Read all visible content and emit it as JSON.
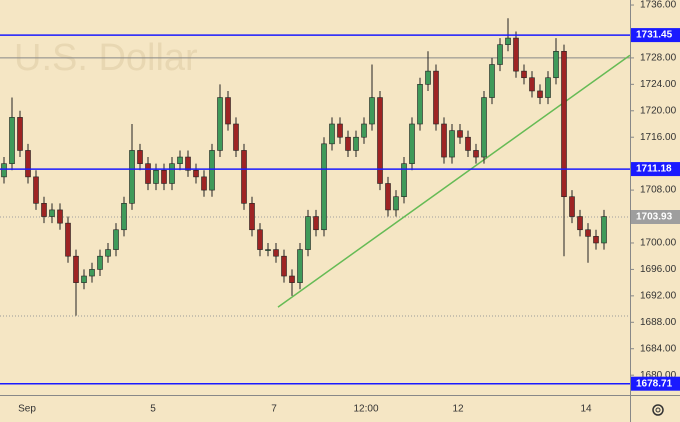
{
  "chart_data": {
    "type": "candlestick",
    "watermark": "U.S. Dollar",
    "ylim": [
      1677.0,
      1736.76
    ],
    "yticks": [
      {
        "value": 1736,
        "label": "1736.00"
      },
      {
        "value": 1728,
        "label": "1728.00"
      },
      {
        "value": 1724,
        "label": "1724.00"
      },
      {
        "value": 1720,
        "label": "1720.00"
      },
      {
        "value": 1716,
        "label": "1716.00"
      },
      {
        "value": 1708,
        "label": "1708.00"
      },
      {
        "value": 1700,
        "label": "1700.00"
      },
      {
        "value": 1696,
        "label": "1696.00"
      },
      {
        "value": 1692,
        "label": "1692.00"
      },
      {
        "value": 1688,
        "label": "1688.00"
      },
      {
        "value": 1684,
        "label": "1684.00"
      },
      {
        "value": 1680,
        "label": "1680.00"
      }
    ],
    "x_labels": [
      "Sep",
      "5",
      "7",
      "12:00",
      "12",
      "14"
    ],
    "up_color": "#3f9a5a",
    "down_color": "#9e2424",
    "open": [
      1710,
      1712,
      1719,
      1714,
      1710,
      1706,
      1704,
      1705,
      1703,
      1698,
      1694,
      1695,
      1696,
      1698,
      1699,
      1702,
      1706,
      1714,
      1712,
      1709,
      1711,
      1709,
      1712,
      1713,
      1711,
      1710,
      1708,
      1714,
      1722,
      1718,
      1714,
      1706,
      1702,
      1699,
      1699,
      1698,
      1695,
      1694,
      1699,
      1704,
      1702,
      1715,
      1718,
      1716,
      1714,
      1716,
      1718,
      1722,
      1709,
      1705,
      1707,
      1712,
      1718,
      1724,
      1726,
      1718,
      1713,
      1717,
      1716,
      1714,
      1713,
      1722,
      1727,
      1730,
      1731,
      1726,
      1725,
      1723,
      1722,
      1725,
      1729,
      1707,
      1704,
      1702,
      1701,
      1700
    ],
    "high": [
      1713,
      1722,
      1720,
      1715,
      1711,
      1707,
      1706,
      1706,
      1704,
      1699,
      1696,
      1697,
      1699,
      1700,
      1703,
      1707,
      1718,
      1715,
      1713,
      1712,
      1712,
      1713,
      1714,
      1714,
      1712,
      1711,
      1715,
      1724,
      1723,
      1719,
      1715,
      1707,
      1703,
      1700,
      1700,
      1699,
      1696,
      1700,
      1705,
      1705,
      1716,
      1719,
      1719,
      1717,
      1717,
      1719,
      1727,
      1723,
      1710,
      1708,
      1713,
      1719,
      1725,
      1729,
      1727,
      1719,
      1718,
      1718,
      1717,
      1715,
      1723,
      1728,
      1731,
      1734,
      1732,
      1727,
      1726,
      1724,
      1726,
      1731,
      1730,
      1708,
      1705,
      1703,
      1702,
      1705
    ],
    "low": [
      1709,
      1711,
      1713,
      1709,
      1705,
      1703,
      1703,
      1702,
      1697,
      1689,
      1693,
      1694,
      1695,
      1697,
      1698,
      1701,
      1705,
      1711,
      1708,
      1708,
      1708,
      1708,
      1711,
      1710,
      1709,
      1707,
      1707,
      1713,
      1717,
      1713,
      1705,
      1701,
      1698,
      1698,
      1697,
      1694,
      1692,
      1693,
      1698,
      1701,
      1701,
      1714,
      1715,
      1713,
      1713,
      1715,
      1717,
      1708,
      1704,
      1704,
      1706,
      1711,
      1717,
      1723,
      1717,
      1712,
      1712,
      1715,
      1713,
      1712,
      1712,
      1721,
      1726,
      1729,
      1725,
      1724,
      1722,
      1721,
      1721,
      1724,
      1698,
      1703,
      1701,
      1697,
      1699,
      1699
    ],
    "close": [
      1712,
      1719,
      1714,
      1710,
      1706,
      1704,
      1705,
      1703,
      1698,
      1694,
      1695,
      1696,
      1698,
      1699,
      1702,
      1706,
      1714,
      1712,
      1709,
      1711,
      1709,
      1712,
      1713,
      1711,
      1710,
      1708,
      1714,
      1722,
      1718,
      1714,
      1706,
      1702,
      1699,
      1699,
      1698,
      1695,
      1694,
      1699,
      1704,
      1702,
      1715,
      1718,
      1716,
      1714,
      1716,
      1718,
      1722,
      1709,
      1705,
      1707,
      1712,
      1718,
      1724,
      1726,
      1718,
      1713,
      1717,
      1716,
      1714,
      1713,
      1722,
      1727,
      1730,
      1731,
      1726,
      1725,
      1723,
      1722,
      1725,
      1729,
      1707,
      1704,
      1702,
      1701,
      1700,
      1704
    ],
    "levels": [
      {
        "value": 1731.45,
        "color": "#1a1aff"
      },
      {
        "value": 1711.18,
        "color": "#1a1aff"
      },
      {
        "value": 1678.71,
        "color": "#1a1aff"
      }
    ],
    "current_price": {
      "value": 1703.93,
      "color": "#9e9e9e"
    },
    "reference_line": {
      "value": 1728.0,
      "color": "#888888"
    },
    "dotted_line": {
      "value": 1688.95,
      "color": "#999999"
    },
    "trendline": {
      "start_value": 1690.3,
      "end_value": 1728.4,
      "color": "#66bb55"
    }
  }
}
